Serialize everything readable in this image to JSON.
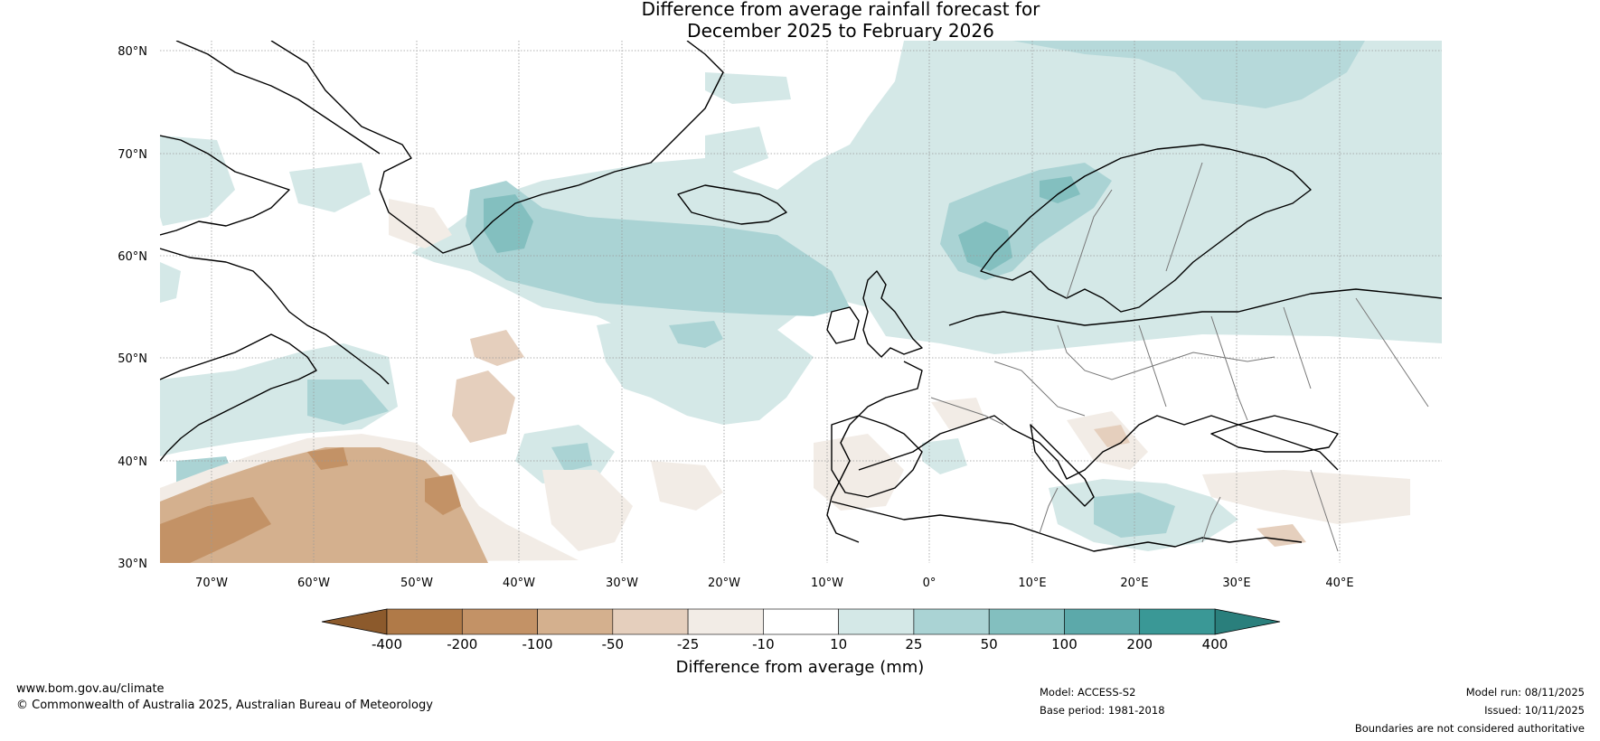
{
  "title": {
    "line1": "Difference from average rainfall forecast for",
    "line2": "December 2025 to February 2026"
  },
  "axes": {
    "lat_labels": [
      "80°N",
      "70°N",
      "60°N",
      "50°N",
      "40°N",
      "30°N"
    ],
    "lon_labels": [
      "70°W",
      "60°W",
      "50°W",
      "40°W",
      "30°W",
      "20°W",
      "10°W",
      "0°",
      "10°E",
      "20°E",
      "30°E",
      "40°E"
    ]
  },
  "colorbar": {
    "label": "Difference from average (mm)",
    "ticks": [
      "-400",
      "-200",
      "-100",
      "-50",
      "-25",
      "-10",
      "10",
      "25",
      "50",
      "100",
      "200",
      "400"
    ],
    "colors": [
      "#8c5a2c",
      "#b07a48",
      "#c39266",
      "#d4b08e",
      "#e5cfbd",
      "#f2ece6",
      "#ffffff",
      "#d4e8e7",
      "#aad3d4",
      "#83bfbf",
      "#5ca9aa",
      "#3a9896",
      "#2a7f7c"
    ]
  },
  "footer": {
    "website": "www.bom.gov.au/climate",
    "copyright": "© Commonwealth of Australia 2025, Australian Bureau of Meteorology",
    "model": "Model: ACCESS-S2",
    "base_period": "Base period: 1981-2018",
    "model_run": "Model run: 08/11/2025",
    "issued": "Issued: 10/11/2025",
    "disclaimer": "Boundaries are not considered authoritative"
  }
}
